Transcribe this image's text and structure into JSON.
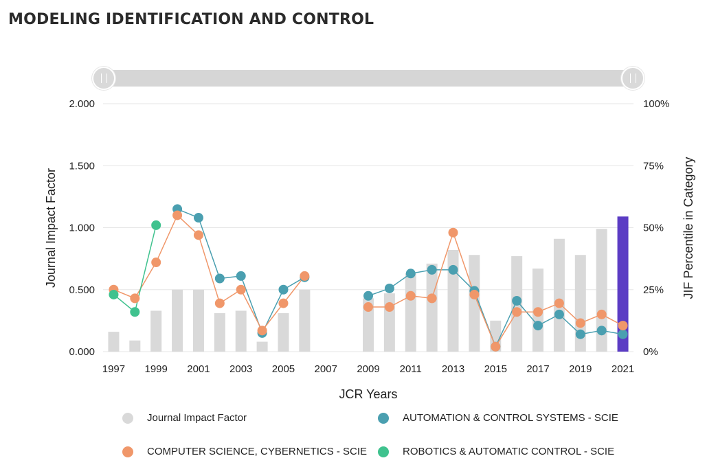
{
  "page": {
    "title": "MODELING IDENTIFICATION AND CONTROL"
  },
  "colors": {
    "jif_bar": "#d9d9d9",
    "highlight_bar": "#5b3cc4",
    "automation": "#4a9fb0",
    "cybernetics": "#f0976a",
    "robotics": "#3fc28e",
    "grid": "#e6e6e6"
  },
  "chart_data": {
    "type": "bar+line",
    "title": "MODELING IDENTIFICATION AND CONTROL",
    "xlabel": "JCR Years",
    "ylabel": "Journal Impact Factor",
    "y2label": "JIF Percentile in Category",
    "ylim": [
      0,
      2
    ],
    "y2lim": [
      0,
      100
    ],
    "yticks": [
      "0.000",
      "0.500",
      "1.000",
      "1.500",
      "2.000"
    ],
    "y2ticks": [
      "0%",
      "25%",
      "50%",
      "75%",
      "100%"
    ],
    "xticks": [
      "1997",
      "1999",
      "2001",
      "2003",
      "2005",
      "2007",
      "2009",
      "2011",
      "2013",
      "2015",
      "2017",
      "2019",
      "2021"
    ],
    "years": [
      1997,
      1998,
      1999,
      2000,
      2001,
      2002,
      2003,
      2004,
      2005,
      2006,
      2007,
      2008,
      2009,
      2010,
      2011,
      2012,
      2013,
      2014,
      2015,
      2016,
      2017,
      2018,
      2019,
      2020,
      2021
    ],
    "highlight_year": 2021,
    "series": [
      {
        "name": "Journal Impact Factor",
        "kind": "bar",
        "axis": "left",
        "values": [
          0.16,
          0.09,
          0.33,
          0.5,
          0.5,
          0.31,
          0.33,
          0.08,
          0.31,
          0.5,
          null,
          null,
          0.43,
          0.47,
          0.63,
          0.71,
          0.82,
          0.78,
          0.25,
          0.77,
          0.67,
          0.91,
          0.78,
          0.99,
          1.09
        ]
      },
      {
        "name": "AUTOMATION & CONTROL SYSTEMS - SCIE",
        "kind": "line",
        "axis": "right",
        "values": [
          null,
          null,
          null,
          57.5,
          54,
          29.5,
          30.5,
          7.5,
          25,
          30,
          null,
          null,
          22.5,
          25.5,
          31.5,
          33,
          33,
          24.5,
          2,
          20.5,
          10.5,
          15,
          7,
          8.5,
          7
        ]
      },
      {
        "name": "COMPUTER SCIENCE, CYBERNETICS - SCIE",
        "kind": "line",
        "axis": "right",
        "values": [
          25,
          21.5,
          36,
          55,
          47,
          19.5,
          25,
          8.5,
          19.5,
          30.5,
          null,
          null,
          18,
          18,
          22.5,
          21.5,
          48,
          23,
          2,
          16,
          16,
          19.5,
          11.5,
          15,
          10.5
        ]
      },
      {
        "name": "ROBOTICS & AUTOMATIC CONTROL - SCIE",
        "kind": "line",
        "axis": "right",
        "values": [
          23,
          16,
          51,
          null,
          null,
          null,
          null,
          null,
          null,
          null,
          null,
          null,
          null,
          null,
          null,
          null,
          null,
          null,
          null,
          null,
          null,
          null,
          null,
          null,
          null
        ]
      }
    ],
    "legend": [
      {
        "label": "Journal Impact Factor"
      },
      {
        "label": "AUTOMATION & CONTROL SYSTEMS - SCIE"
      },
      {
        "label": "COMPUTER SCIENCE, CYBERNETICS - SCIE"
      },
      {
        "label": "ROBOTICS & AUTOMATIC CONTROL - SCIE"
      }
    ]
  }
}
